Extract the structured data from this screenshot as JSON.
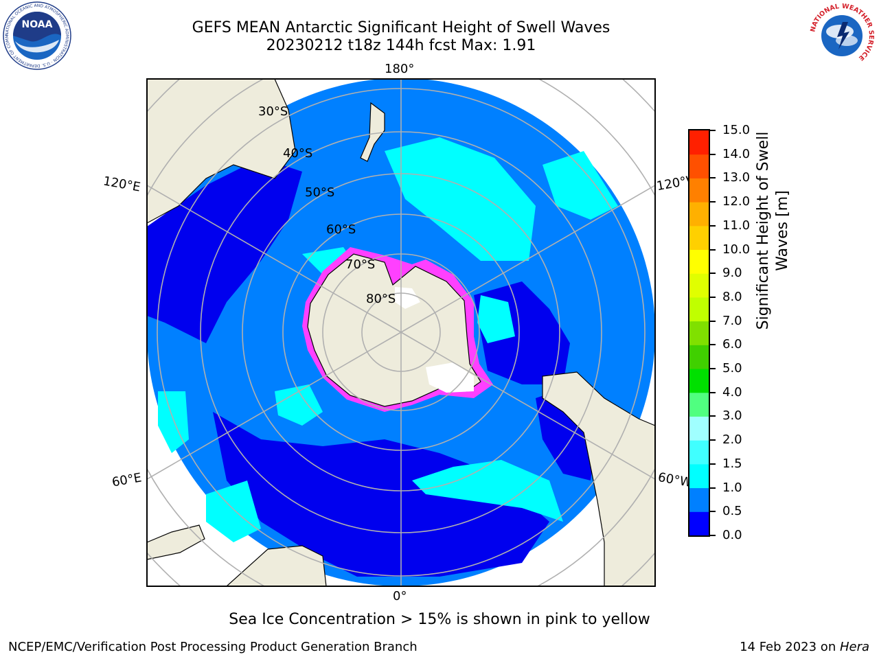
{
  "title_line1": "GEFS MEAN Antarctic Significant Height of Swell Waves",
  "title_line2": "20230212 t18z 144h fcst   Max: 1.91",
  "map": {
    "lon_labels": [
      "180°",
      "120°E",
      "120°W",
      "60°E",
      "60°W",
      "0°"
    ],
    "lat_labels": [
      "30°S",
      "40°S",
      "50°S",
      "60°S",
      "70°S",
      "80°S"
    ]
  },
  "colorbar": {
    "label_line1": "Significant Height of Swell",
    "label_line2": "Waves [m]",
    "ticks": [
      "0.0",
      "0.5",
      "1.0",
      "1.5",
      "2.0",
      "3.0",
      "4.0",
      "5.0",
      "6.0",
      "7.0",
      "8.0",
      "9.0",
      "10.0",
      "11.0",
      "12.0",
      "13.0",
      "14.0",
      "15.0"
    ],
    "colors": [
      "#0000ff",
      "#0080ff",
      "#00ffff",
      "#40ffff",
      "#a0ffff",
      "#50ff80",
      "#00e000",
      "#40d000",
      "#80e000",
      "#c0ff00",
      "#e0ff00",
      "#ffff00",
      "#ffd000",
      "#ffb000",
      "#ff8000",
      "#ff5000",
      "#ff2000"
    ]
  },
  "ice_note": "Sea Ice Concentration > 15% is shown in pink to yellow",
  "footer_left": "NCEP/EMC/Verification Post Processing Product Generation Branch",
  "footer_right_date": "14 Feb 2023 on ",
  "footer_right_host": "Hera",
  "logos": {
    "noaa_text": "NOAA",
    "noaa_ring": "NATIONAL OCEANIC AND ATMOSPHERIC ADMINISTRATION · U.S. DEPARTMENT OF COMMERCE",
    "nws_ring": "NATIONAL WEATHER SERVICE"
  },
  "palette": {
    "land": "#eeecdc",
    "ocean_low": "#0000ee",
    "ocean_mid": "#0080ff",
    "ocean_high": "#00ffff",
    "ice": "#ff40ff",
    "grid": "#b0b0b0"
  }
}
